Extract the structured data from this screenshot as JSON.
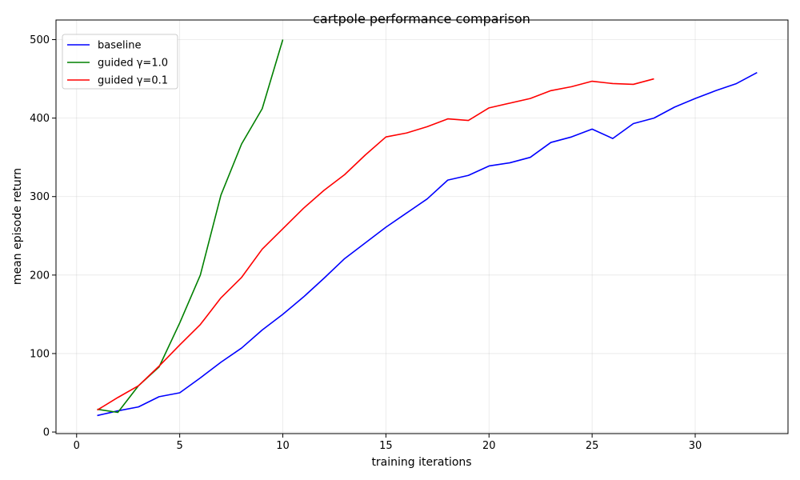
{
  "chart_data": {
    "type": "line",
    "title": "cartpole performance comparison",
    "xlabel": "training iterations",
    "ylabel": "mean episode return",
    "xlim": [
      -1,
      34.5
    ],
    "ylim": [
      -2,
      525
    ],
    "xticks": [
      0,
      5,
      10,
      15,
      20,
      25,
      30
    ],
    "yticks": [
      0,
      100,
      200,
      300,
      400,
      500
    ],
    "grid": true,
    "legend_position": "top-left",
    "series": [
      {
        "name": "baseline",
        "color": "#0000ff",
        "x": [
          1,
          2,
          3,
          4,
          5,
          6,
          7,
          8,
          9,
          10,
          11,
          12,
          13,
          14,
          15,
          16,
          17,
          18,
          19,
          20,
          21,
          22,
          23,
          24,
          25,
          26,
          27,
          28,
          29,
          30,
          31,
          32,
          33
        ],
        "y": [
          21,
          27,
          32,
          45,
          50,
          69,
          89,
          107,
          130,
          150,
          172,
          196,
          221,
          241,
          261,
          279,
          297,
          321,
          327,
          339,
          343,
          350,
          369,
          376,
          386,
          374,
          393,
          400,
          414,
          425,
          435,
          444,
          458
        ]
      },
      {
        "name": "guided γ=1.0",
        "color": "#008000",
        "x": [
          1,
          2,
          3,
          4,
          5,
          6,
          7,
          8,
          9,
          10
        ],
        "y": [
          29,
          25,
          59,
          83,
          139,
          200,
          302,
          367,
          412,
          500
        ]
      },
      {
        "name": "guided γ=0.1",
        "color": "#ff0000",
        "x": [
          1,
          2,
          3,
          4,
          5,
          6,
          7,
          8,
          9,
          10,
          11,
          12,
          13,
          14,
          15,
          16,
          17,
          18,
          19,
          20,
          21,
          22,
          23,
          24,
          25,
          26,
          27,
          28
        ],
        "y": [
          28,
          44,
          59,
          84,
          111,
          137,
          171,
          197,
          233,
          259,
          285,
          308,
          328,
          353,
          376,
          381,
          389,
          399,
          397,
          413,
          419,
          425,
          435,
          440,
          447,
          444,
          443,
          450
        ]
      }
    ]
  }
}
